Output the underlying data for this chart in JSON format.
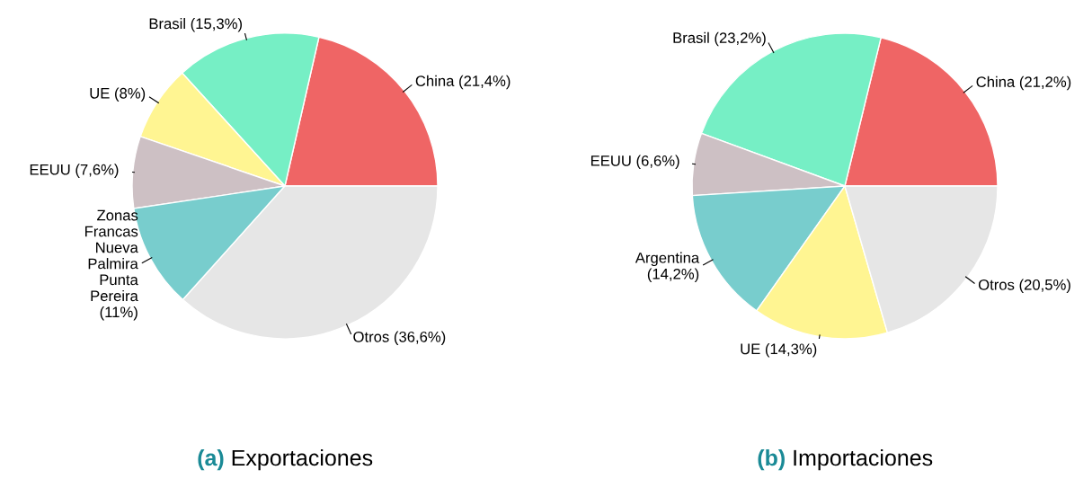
{
  "chart_data": [
    {
      "type": "pie",
      "title": "(a) Exportaciones",
      "categories": [
        "China",
        "Brasil",
        "UE",
        "EEUU",
        "Zonas\nFrancas\nNueva\nPalmira\nPunta\nPereira",
        "Otros"
      ],
      "values": [
        21.4,
        15.3,
        8,
        7.6,
        11,
        36.6
      ],
      "value_labels": [
        "(21,4%)",
        "(15,3%)",
        "(8%)",
        "(7,6%)",
        "(11%)",
        "(36,6%)"
      ],
      "colors": [
        "#ef6565",
        "#76efc5",
        "#fff592",
        "#cdc0c4",
        "#78cdcd",
        "#e6e6e6"
      ]
    },
    {
      "type": "pie",
      "title": "(b) Importaciones",
      "categories": [
        "China",
        "Brasil",
        "EEUU",
        "Argentina",
        "UE",
        "Otros"
      ],
      "values": [
        21.2,
        23.2,
        6.6,
        14.2,
        14.3,
        20.5
      ],
      "value_labels": [
        "(21,2%)",
        "(23,2%)",
        "(6,6%)",
        "(14,2%)",
        "(14,3%)",
        "(20,5%)"
      ],
      "colors": [
        "#ef6565",
        "#76efc5",
        "#cdc0c4",
        "#78cdcd",
        "#fff592",
        "#e6e6e6"
      ]
    }
  ]
}
